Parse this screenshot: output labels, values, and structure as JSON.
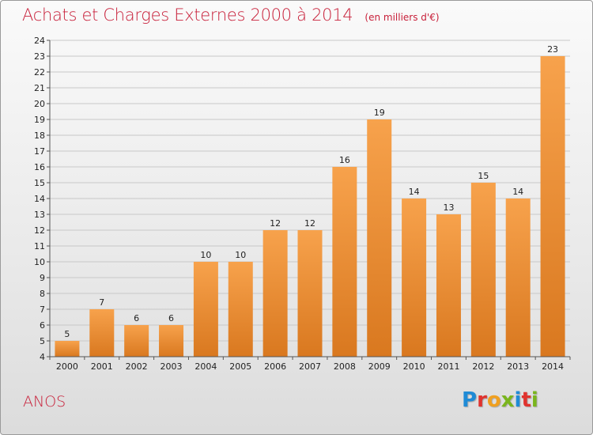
{
  "title": "Achats et Charges Externes 2000 à 2014",
  "unit": "(en milliers d'€)",
  "place": "ANOS",
  "logo": {
    "text": "Proxiti",
    "letters": [
      {
        "char": "P",
        "color": "#1f8bd6"
      },
      {
        "char": "r",
        "color": "#e0332e"
      },
      {
        "char": "o",
        "color": "#f0a020"
      },
      {
        "char": "x",
        "color": "#7ab51d"
      },
      {
        "char": "i",
        "color": "#1f8bd6"
      },
      {
        "char": "t",
        "color": "#e0332e"
      },
      {
        "char": "i",
        "color": "#7ab51d"
      }
    ]
  },
  "colors": {
    "bar_light": "#f7a24c",
    "bar_dark": "#d9781f",
    "title": "#c8203a",
    "grid": "#c8c8c8"
  },
  "chart_data": {
    "type": "bar",
    "title": "Achats et Charges Externes 2000 à 2014",
    "subtitle": "(en milliers d'€)",
    "categories": [
      "2000",
      "2001",
      "2002",
      "2003",
      "2004",
      "2005",
      "2006",
      "2007",
      "2008",
      "2009",
      "2010",
      "2011",
      "2012",
      "2013",
      "2014"
    ],
    "values": [
      5,
      7,
      6,
      6,
      10,
      10,
      12,
      12,
      16,
      19,
      14,
      13,
      15,
      14,
      23
    ],
    "xlabel": "",
    "ylabel": "",
    "ylim": [
      4,
      24
    ],
    "yticks": [
      "4",
      "5",
      "6",
      "7",
      "8",
      "9",
      "10",
      "11",
      "12",
      "13",
      "14",
      "15",
      "16",
      "17",
      "18",
      "19",
      "20",
      "21",
      "22",
      "23",
      "24"
    ],
    "grid": true,
    "legend": "none"
  }
}
